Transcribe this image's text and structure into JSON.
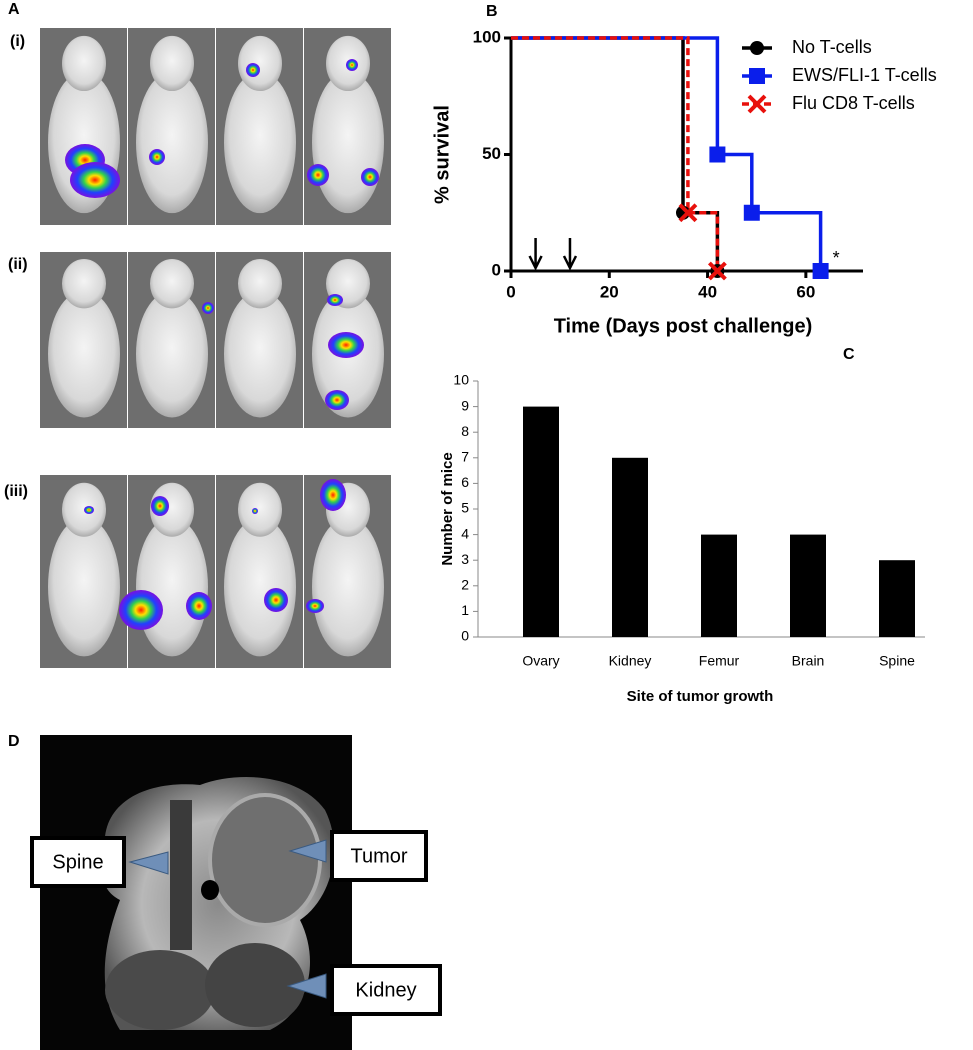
{
  "panels": {
    "A": {
      "label": "A",
      "rows": [
        "(i)",
        "(ii)",
        "(iii)"
      ]
    },
    "B": {
      "label": "B"
    },
    "C": {
      "label": "C"
    },
    "D": {
      "label": "D",
      "callouts": [
        "Spine",
        "Tumor",
        "Kidney"
      ]
    }
  },
  "chart_data": [
    {
      "type": "step",
      "xlabel": "Time (Days post challenge)",
      "ylabel": "% survival",
      "xlim": [
        0,
        70
      ],
      "ylim": [
        0,
        100
      ],
      "xticks": [
        0,
        20,
        40,
        60
      ],
      "yticks": [
        0,
        50,
        100
      ],
      "legend": "upper right",
      "treatment_days": [
        5,
        12
      ],
      "annotation": "*",
      "series": [
        {
          "name": "No T-cells",
          "color": "#000000",
          "marker": "circle",
          "dashed": false,
          "x": [
            0,
            35,
            42
          ],
          "values": [
            100,
            25,
            0
          ]
        },
        {
          "name": "EWS/FLI-1 T-cells",
          "color": "#0a1eeb",
          "marker": "square",
          "dashed": false,
          "x": [
            0,
            42,
            49,
            63
          ],
          "values": [
            100,
            50,
            25,
            0
          ]
        },
        {
          "name": "Flu CD8 T-cells",
          "color": "#e8100c",
          "marker": "x",
          "dashed": true,
          "x": [
            0,
            36,
            42
          ],
          "values": [
            100,
            25,
            0
          ]
        }
      ]
    },
    {
      "type": "bar",
      "xlabel": "Site of tumor growth",
      "ylabel": "Number of mice",
      "categories": [
        "Ovary",
        "Kidney",
        "Femur",
        "Brain",
        "Spine"
      ],
      "values": [
        9,
        7,
        4,
        4,
        3
      ],
      "color": "#000000",
      "ylim": [
        0,
        10
      ],
      "yticks": [
        0,
        1,
        2,
        3,
        4,
        5,
        6,
        7,
        8,
        9,
        10
      ]
    }
  ]
}
